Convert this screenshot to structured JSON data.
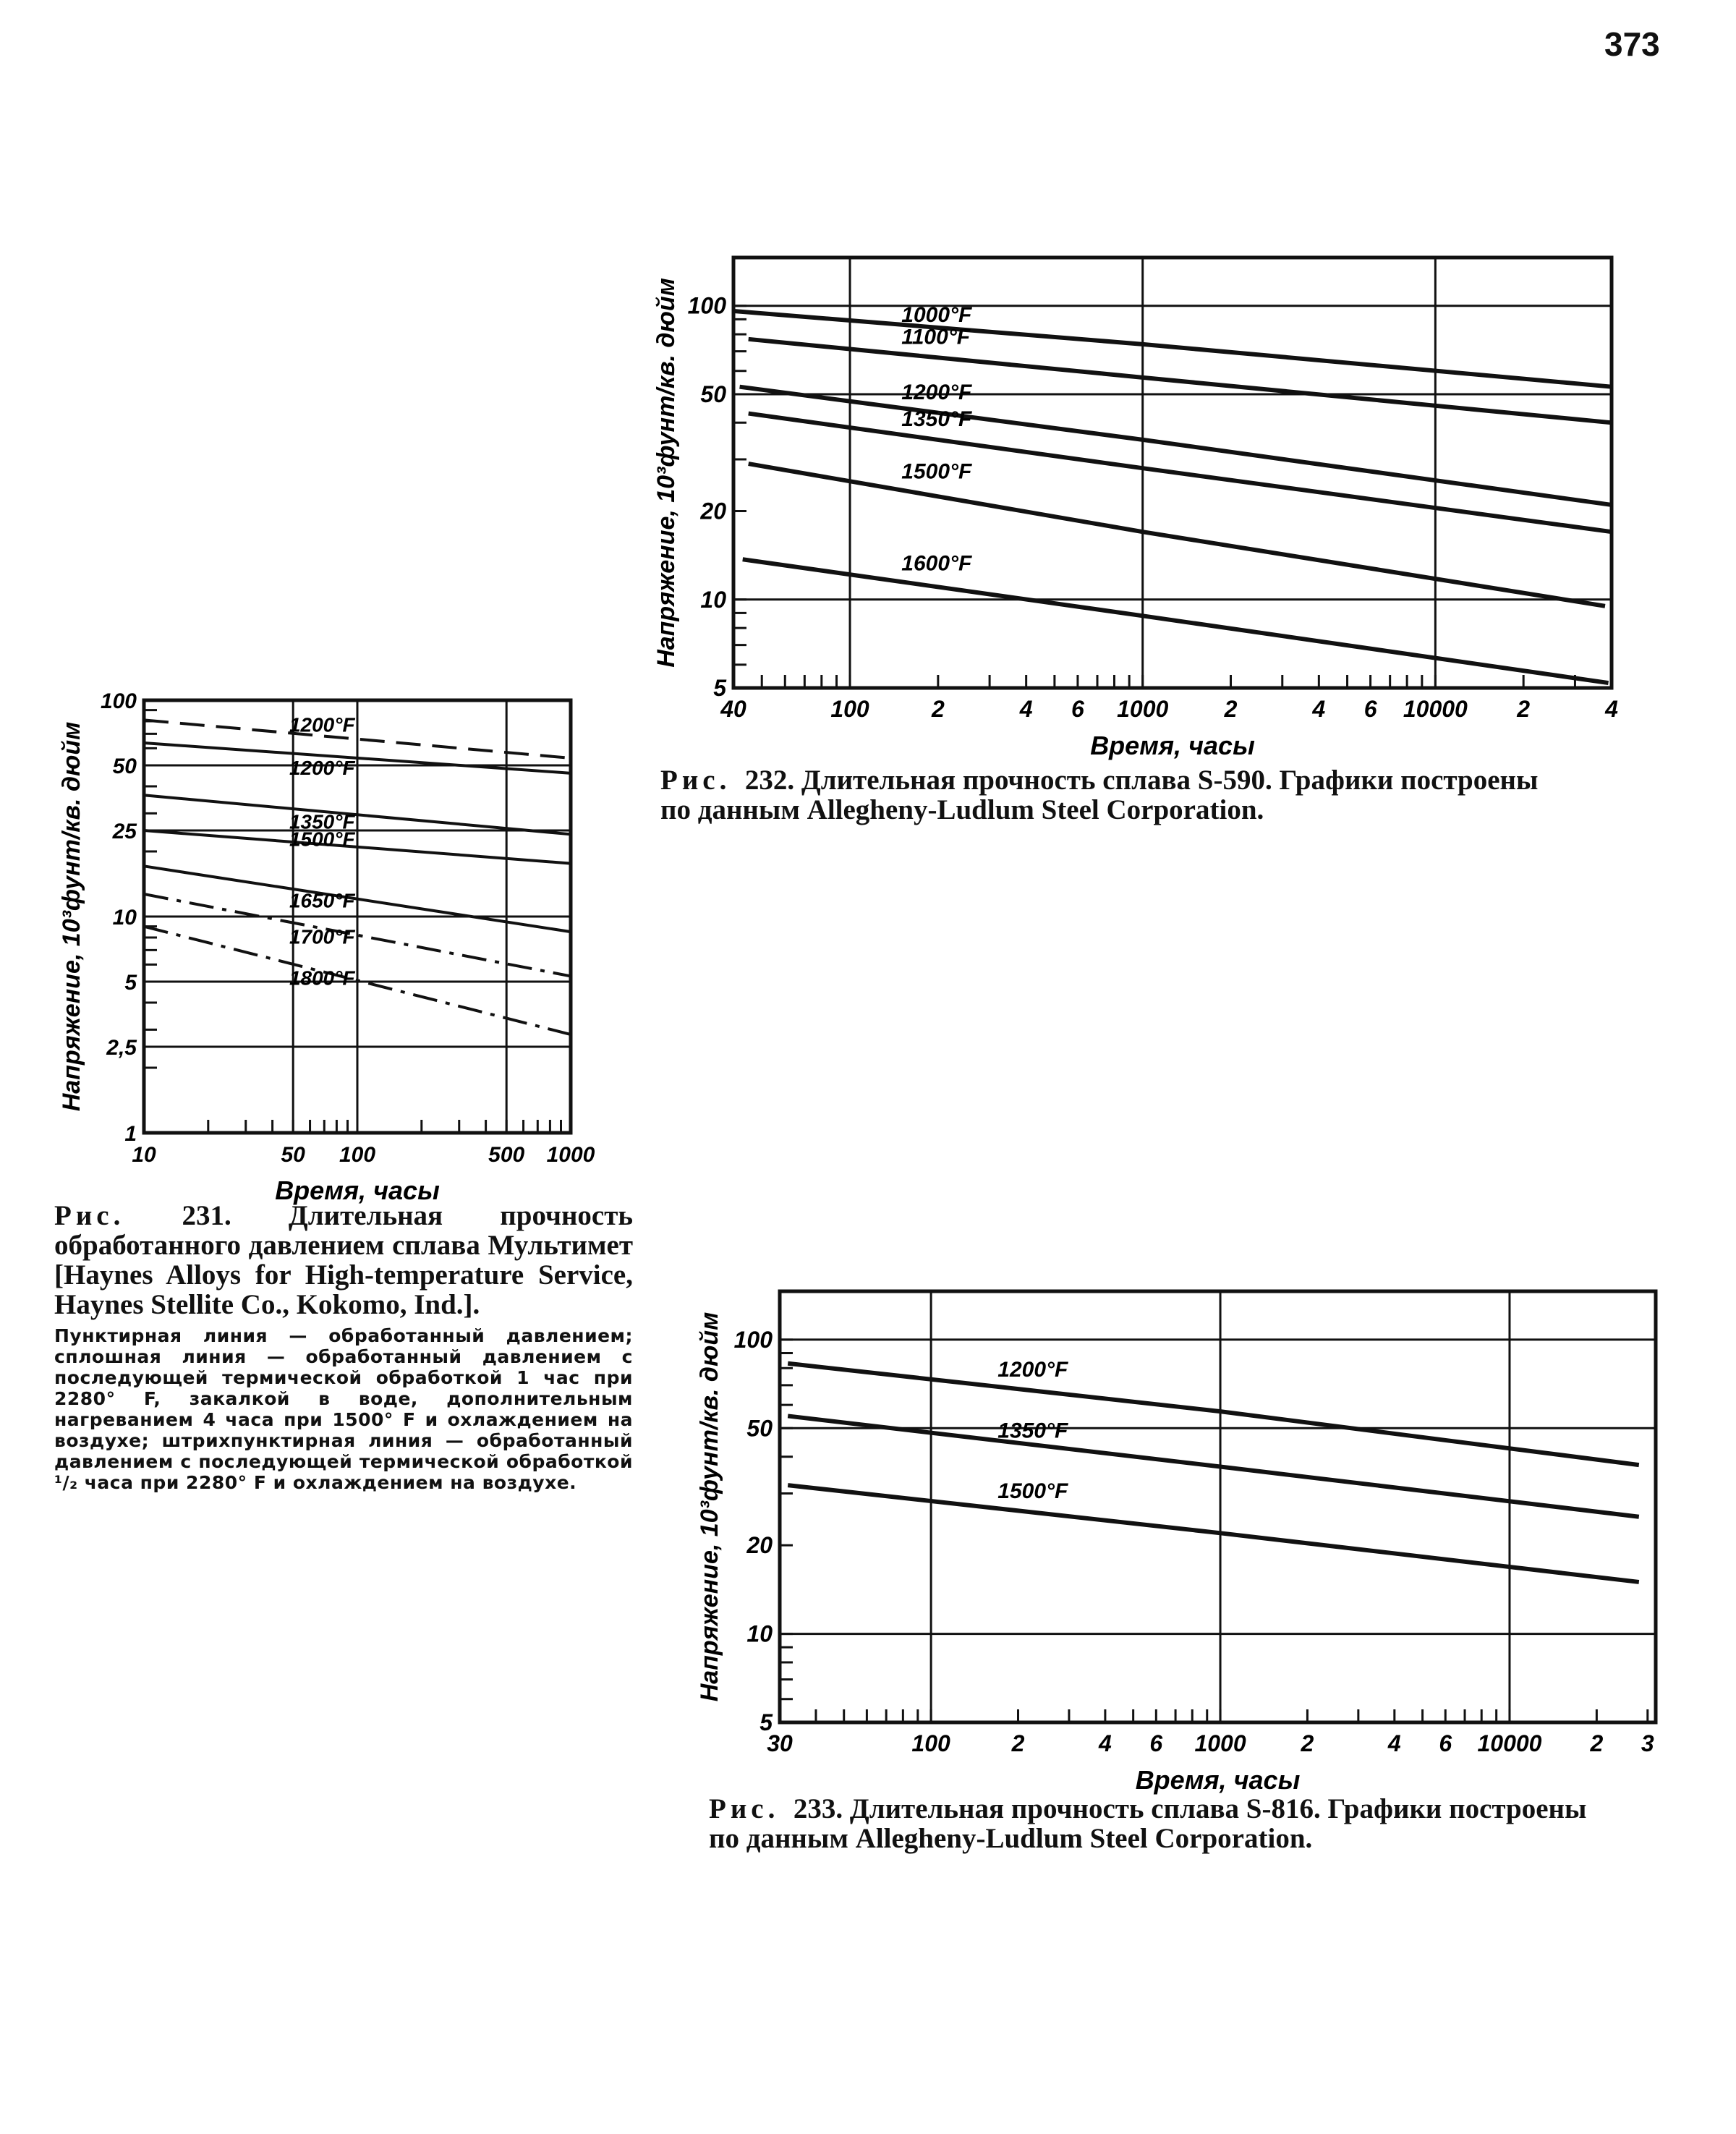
{
  "page_number": "373",
  "chart_data": [
    {
      "id": "fig231",
      "type": "line",
      "x_scale": "log",
      "y_scale": "log",
      "xlabel": "Время, часы",
      "ylabel": "Напряжение, 10³фунт/кв. дюйм",
      "xlim": [
        10,
        1000
      ],
      "ylim": [
        1,
        100
      ],
      "xticks": [
        {
          "v": 10,
          "label": "10"
        },
        {
          "v": 50,
          "label": "50"
        },
        {
          "v": 100,
          "label": "100"
        },
        {
          "v": 500,
          "label": "500"
        },
        {
          "v": 1000,
          "label": "1000"
        }
      ],
      "yticks": [
        {
          "v": 100,
          "label": "100"
        },
        {
          "v": 50,
          "label": "50"
        },
        {
          "v": 25,
          "label": "25"
        },
        {
          "v": 10,
          "label": "10"
        },
        {
          "v": 5,
          "label": "5"
        },
        {
          "v": 2.5,
          "label": "2,5"
        },
        {
          "v": 1,
          "label": "1"
        }
      ],
      "xgrid": [
        50,
        100,
        500
      ],
      "ygrid": [
        50,
        25,
        10,
        5,
        2.5
      ],
      "series": [
        {
          "name": "1200°F",
          "style": "dashed",
          "x": [
            10,
            1000
          ],
          "y": [
            81,
            54
          ]
        },
        {
          "name": "1200°F",
          "style": "solid",
          "x": [
            10,
            1000
          ],
          "y": [
            63.5,
            46
          ]
        },
        {
          "name": "1350°F",
          "style": "solid",
          "x": [
            10,
            1000
          ],
          "y": [
            36.4,
            24
          ]
        },
        {
          "name": "1500°F",
          "style": "solid",
          "x": [
            10,
            1000
          ],
          "y": [
            25,
            17.6
          ]
        },
        {
          "name": "1650°F",
          "style": "solid",
          "x": [
            10,
            1000
          ],
          "y": [
            17.1,
            8.5
          ]
        },
        {
          "name": "1700°F",
          "style": "dashdot",
          "x": [
            10,
            1000
          ],
          "y": [
            12.7,
            5.3
          ]
        },
        {
          "name": "1800°F",
          "style": "dashdot",
          "x": [
            10,
            1000
          ],
          "y": [
            9,
            2.85
          ]
        }
      ]
    },
    {
      "id": "fig232",
      "type": "line",
      "x_scale": "log",
      "y_scale": "log",
      "xlabel": "Время, часы",
      "ylabel": "Напряжение, 10³фунт/кв. дюйм",
      "xlim": [
        40,
        40000
      ],
      "ylim": [
        5,
        146
      ],
      "xticks": [
        {
          "v": 40,
          "label": "40"
        },
        {
          "v": 100,
          "label": "100"
        },
        {
          "v": 200,
          "label": "2"
        },
        {
          "v": 400,
          "label": "4"
        },
        {
          "v": 600,
          "label": "6"
        },
        {
          "v": 1000,
          "label": "1000"
        },
        {
          "v": 2000,
          "label": "2"
        },
        {
          "v": 4000,
          "label": "4"
        },
        {
          "v": 6000,
          "label": "6"
        },
        {
          "v": 10000,
          "label": "10000"
        },
        {
          "v": 20000,
          "label": "2"
        },
        {
          "v": 40000,
          "label": "4"
        }
      ],
      "yticks": [
        {
          "v": 100,
          "label": "100"
        },
        {
          "v": 50,
          "label": "50"
        },
        {
          "v": 20,
          "label": "20"
        },
        {
          "v": 10,
          "label": "10"
        },
        {
          "v": 5,
          "label": "5"
        }
      ],
      "xgrid": [
        100,
        1000,
        10000
      ],
      "ygrid": [
        100,
        50,
        10
      ],
      "series": [
        {
          "name": "1000°F",
          "style": "solid",
          "x": [
            40,
            1000,
            40000
          ],
          "y": [
            96,
            74,
            53
          ]
        },
        {
          "name": "1100°F",
          "style": "solid",
          "x": [
            45,
            1000,
            40000
          ],
          "y": [
            77,
            57,
            40
          ]
        },
        {
          "name": "1200°F",
          "style": "solid",
          "x": [
            42,
            1000,
            40000
          ],
          "y": [
            53,
            35,
            21
          ]
        },
        {
          "name": "1350°F",
          "style": "solid",
          "x": [
            45,
            1000,
            40000
          ],
          "y": [
            43,
            28,
            17
          ]
        },
        {
          "name": "1500°F",
          "style": "solid",
          "x": [
            45,
            1000,
            38000
          ],
          "y": [
            29,
            17,
            9.5
          ]
        },
        {
          "name": "1600°F",
          "style": "solid",
          "x": [
            43,
            1000,
            39000
          ],
          "y": [
            13.7,
            8.8,
            5.2
          ]
        }
      ]
    },
    {
      "id": "fig233",
      "type": "line",
      "x_scale": "log",
      "y_scale": "log",
      "xlabel": "Время, часы",
      "ylabel": "Напряжение, 10³фунт/кв. дюйм",
      "xlim": [
        30,
        32000
      ],
      "ylim": [
        5,
        146
      ],
      "xticks": [
        {
          "v": 30,
          "label": "30"
        },
        {
          "v": 100,
          "label": "100"
        },
        {
          "v": 200,
          "label": "2"
        },
        {
          "v": 400,
          "label": "4"
        },
        {
          "v": 600,
          "label": "6"
        },
        {
          "v": 1000,
          "label": "1000"
        },
        {
          "v": 2000,
          "label": "2"
        },
        {
          "v": 4000,
          "label": "4"
        },
        {
          "v": 6000,
          "label": "6"
        },
        {
          "v": 10000,
          "label": "10000"
        },
        {
          "v": 20000,
          "label": "2"
        },
        {
          "v": 30000,
          "label": "3"
        }
      ],
      "yticks": [
        {
          "v": 100,
          "label": "100"
        },
        {
          "v": 50,
          "label": "50"
        },
        {
          "v": 20,
          "label": "20"
        },
        {
          "v": 10,
          "label": "10"
        },
        {
          "v": 5,
          "label": "5"
        }
      ],
      "xgrid": [
        100,
        1000,
        10000
      ],
      "ygrid": [
        100,
        50,
        10
      ],
      "series": [
        {
          "name": "1200°F",
          "style": "solid",
          "x": [
            32,
            1000,
            28000
          ],
          "y": [
            83,
            57,
            37.5
          ]
        },
        {
          "name": "1350°F",
          "style": "solid",
          "x": [
            32,
            1000,
            28000
          ],
          "y": [
            55,
            37,
            25
          ]
        },
        {
          "name": "1500°F",
          "style": "solid",
          "x": [
            32,
            1000,
            28000
          ],
          "y": [
            32,
            22,
            15
          ]
        }
      ]
    }
  ],
  "captions": {
    "fig231": {
      "prefix": "Рис.",
      "text": "231. Длительная прочность обработанного давлением сплава Мультимет [Haynes Alloys for High-temperature Service, Haynes Stellite Co., Kokomo, Ind.].",
      "note": "Пунктирная линия — обработанный давлением; сплошная линия — обработанный давлением с последующей термической обработкой 1 час при 2280° F, закалкой в воде, дополнительным нагреванием 4 часа при 1500° F и охлаждением на воздухе; штрихпунктирная линия — обработанный давлением с последующей термической обработкой ¹/₂ часа при 2280° F и охлаждением на воздухе."
    },
    "fig232": {
      "prefix": "Рис.",
      "text": "232. Длительная прочность сплава S-590. Графики построены",
      "text2": "по данным Allegheny-Ludlum Steel Corporation."
    },
    "fig233": {
      "prefix": "Рис.",
      "text": "233. Длительная прочность сплава S-816. Графики построены",
      "text2": "по данным Allegheny-Ludlum Steel Corporation."
    }
  }
}
